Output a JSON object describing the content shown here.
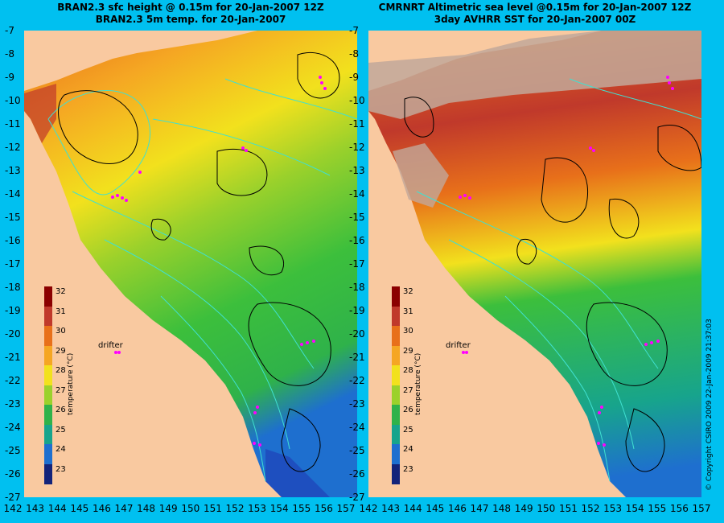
{
  "left_panel": {
    "title_line1": "BRAN2.3 sfc height @ 0.15m for 20-Jan-2007 12Z",
    "title_line2": "BRAN2.3 5m temp. for 20-Jan-2007",
    "drifter_label": "drifter"
  },
  "right_panel": {
    "title_line1": "CMRNRT Altimetric sea level  @0.15m  for 20-Jan-2007 12Z",
    "title_line2": "3day AVHRR SST for 20-Jan-2007 00Z",
    "drifter_label": "drifter"
  },
  "latitudes": [
    "-7",
    "-8",
    "-9",
    "-10",
    "-11",
    "-12",
    "-13",
    "-14",
    "-15",
    "-16",
    "-17",
    "-18",
    "-19",
    "-20",
    "-21",
    "-22",
    "-23",
    "-24",
    "-25",
    "-26",
    "-27"
  ],
  "longitudes": [
    "142",
    "143",
    "144",
    "145",
    "146",
    "147",
    "148",
    "149",
    "150",
    "151",
    "152",
    "153",
    "154",
    "155",
    "156",
    "157"
  ],
  "colorbar": {
    "title": "temperature (°C)",
    "ticks": [
      "32",
      "31",
      "30",
      "29",
      "28",
      "27",
      "26",
      "25",
      "24",
      "23"
    ],
    "colors": [
      "#8b0000",
      "#c0392b",
      "#e8701a",
      "#f5a623",
      "#f2e11d",
      "#9bd12b",
      "#2fb24a",
      "#17a48c",
      "#1e6fcf",
      "#13237a"
    ]
  },
  "copyright": "© Copyright CSIRO 2009    22-Jan-2009 21:37:03",
  "colors": {
    "background": "#00c0f0",
    "land": "#f9c9a0",
    "contour": "#40e0d0",
    "drifter": "#ff00ff"
  }
}
